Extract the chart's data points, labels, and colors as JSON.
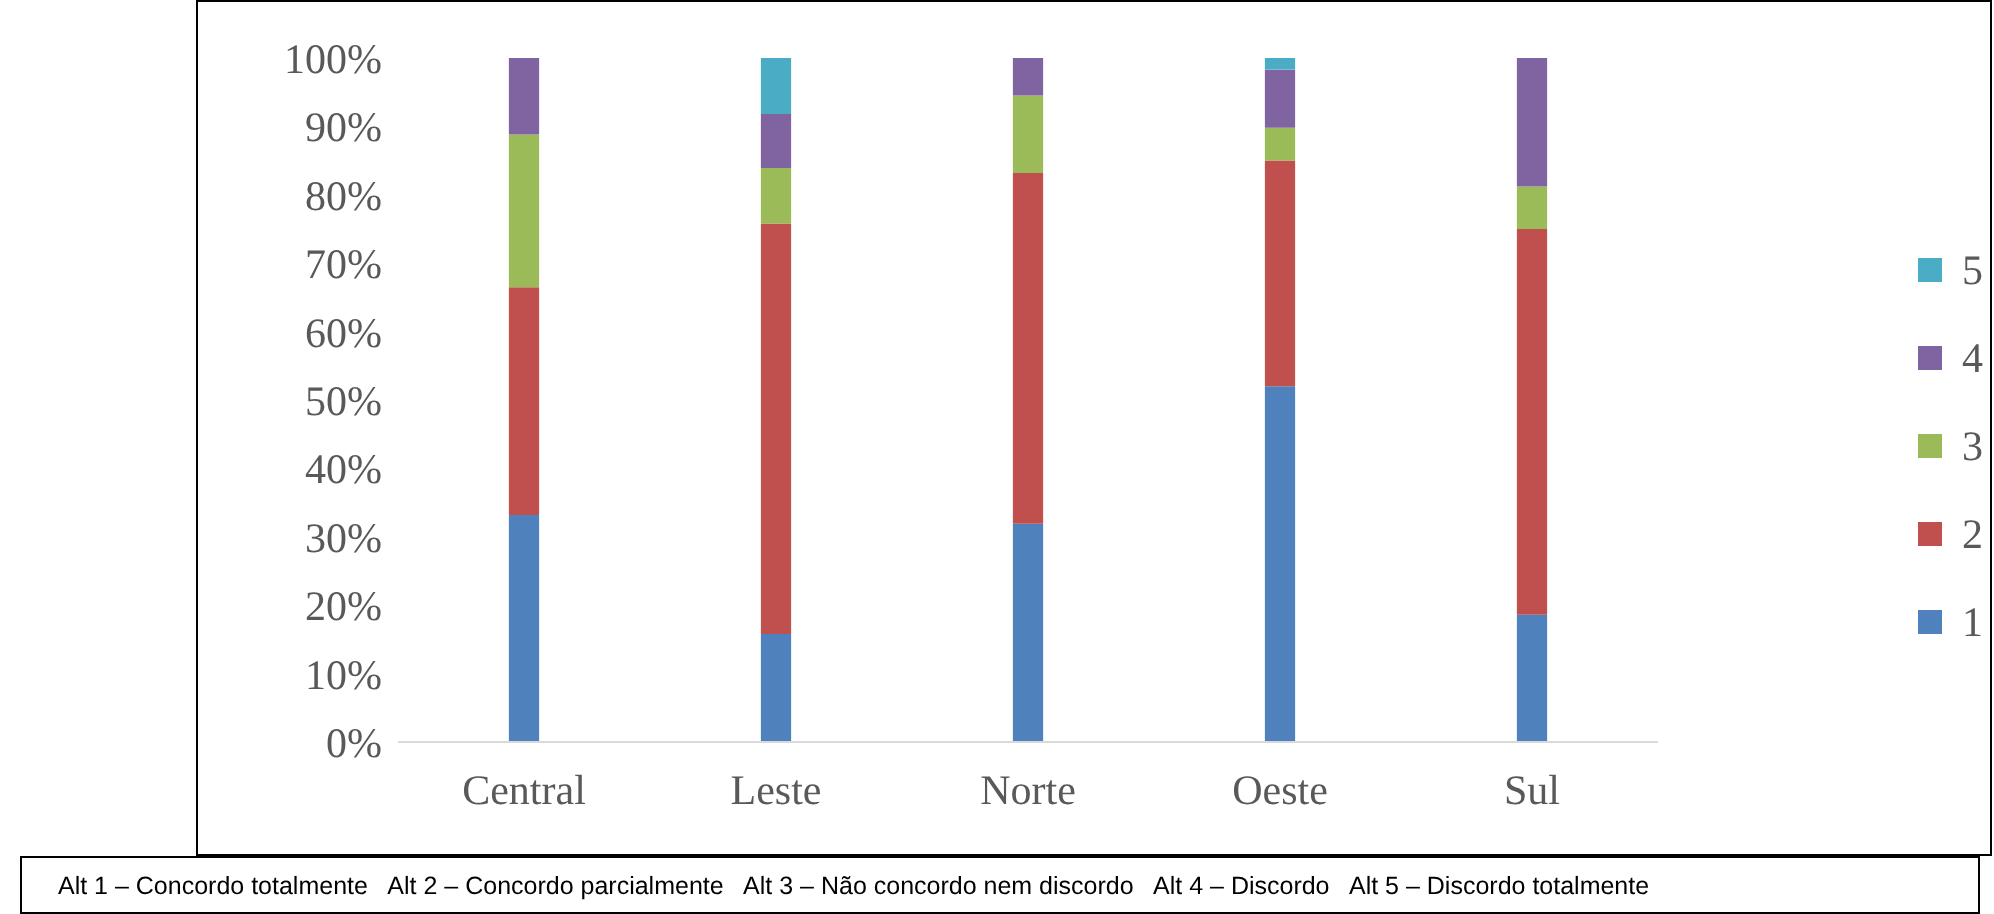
{
  "chart_data": {
    "type": "bar",
    "stacked": true,
    "categories": [
      "Central",
      "Leste",
      "Norte",
      "Oeste",
      "Sul"
    ],
    "series": [
      {
        "name": "1",
        "color": "#4f81bd",
        "values": [
          33.2,
          15.8,
          31.9,
          52.0,
          18.6
        ]
      },
      {
        "name": "2",
        "color": "#c0504d",
        "values": [
          33.3,
          60.0,
          51.3,
          33.0,
          56.4
        ]
      },
      {
        "name": "3",
        "color": "#9bbb59",
        "values": [
          22.3,
          8.1,
          11.3,
          4.8,
          6.2
        ]
      },
      {
        "name": "4",
        "color": "#8064a2",
        "values": [
          11.2,
          7.9,
          5.5,
          8.5,
          18.8
        ]
      },
      {
        "name": "5",
        "color": "#4bacc6",
        "values": [
          0,
          8.2,
          0,
          1.7,
          0
        ]
      }
    ],
    "ylim": [
      0,
      100
    ],
    "yticks": [
      {
        "value": 0,
        "label": "0%"
      },
      {
        "value": 10,
        "label": "10%"
      },
      {
        "value": 20,
        "label": "20%"
      },
      {
        "value": 30,
        "label": "30%"
      },
      {
        "value": 40,
        "label": "40%"
      },
      {
        "value": 50,
        "label": "50%"
      },
      {
        "value": 60,
        "label": "60%"
      },
      {
        "value": 70,
        "label": "70%"
      },
      {
        "value": 80,
        "label": "80%"
      },
      {
        "value": 90,
        "label": "90%"
      },
      {
        "value": 100,
        "label": "100%"
      }
    ],
    "grid": false,
    "legend": "right",
    "annotations": [
      "Alt 1 – Concordo totalmente   Alt 2 – Concordo parcialmente   Alt 3 – Não concordo nem discordo   Alt 4 – Discordo   Alt 5 – Discordo totalmente"
    ]
  }
}
